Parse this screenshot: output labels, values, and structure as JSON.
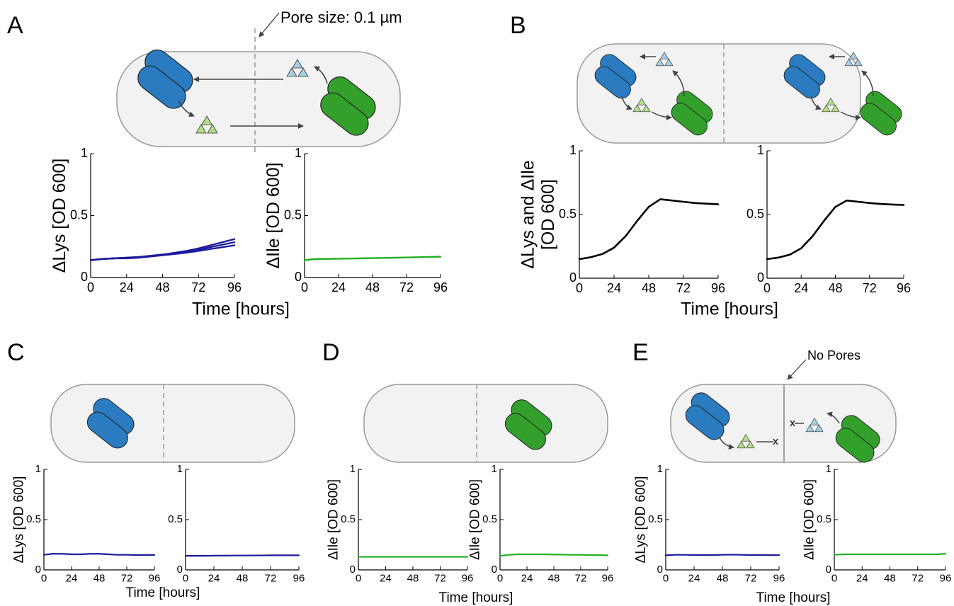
{
  "figure": {
    "panel_labels": [
      "A",
      "B",
      "C",
      "D",
      "E"
    ],
    "annotations": [
      "Pore size: 0.1 µm",
      "No Pores"
    ]
  },
  "chart_data": [
    {
      "type": "line",
      "ylabel": "ΔLys [OD 600]",
      "xlabel": "Time [hours]",
      "xlim": [
        0,
        96
      ],
      "ylim": [
        0,
        1
      ],
      "xticks": [
        0,
        24,
        48,
        72,
        96
      ],
      "yticks": [
        0,
        0.5,
        1
      ],
      "x": [
        0,
        8,
        16,
        24,
        32,
        40,
        48,
        56,
        64,
        72,
        80,
        88,
        96
      ],
      "series": [
        {
          "color": "#1c1c9c",
          "values": [
            0.14,
            0.15,
            0.155,
            0.155,
            0.16,
            0.17,
            0.18,
            0.19,
            0.2,
            0.215,
            0.23,
            0.245,
            0.26
          ]
        },
        {
          "color": "#1c1c9c",
          "values": [
            0.14,
            0.15,
            0.155,
            0.16,
            0.165,
            0.175,
            0.185,
            0.195,
            0.21,
            0.225,
            0.245,
            0.265,
            0.285
          ]
        },
        {
          "color": "#1c1c9c",
          "values": [
            0.14,
            0.15,
            0.155,
            0.16,
            0.165,
            0.175,
            0.185,
            0.2,
            0.215,
            0.235,
            0.26,
            0.285,
            0.31
          ]
        }
      ]
    },
    {
      "type": "line",
      "ylabel": "ΔIle [OD 600]",
      "xlim": [
        0,
        96
      ],
      "ylim": [
        0,
        1
      ],
      "xticks": [
        0,
        24,
        48,
        72,
        96
      ],
      "yticks": [
        0,
        0.5,
        1
      ],
      "x": [
        0,
        8,
        16,
        24,
        32,
        40,
        48,
        56,
        64,
        72,
        80,
        88,
        96
      ],
      "series": [
        {
          "color": "#22b022",
          "values": [
            0.14,
            0.15,
            0.15,
            0.152,
            0.153,
            0.155,
            0.157,
            0.158,
            0.16,
            0.162,
            0.164,
            0.166,
            0.168
          ]
        }
      ]
    },
    {
      "type": "line",
      "ylabel": [
        "ΔLys and ΔIle",
        "[OD 600]"
      ],
      "xlabel": "Time [hours]",
      "xlim": [
        0,
        96
      ],
      "ylim": [
        0,
        1
      ],
      "xticks": [
        0,
        24,
        48,
        72,
        96
      ],
      "yticks": [
        0,
        0.5,
        1
      ],
      "x": [
        0,
        8,
        16,
        24,
        32,
        40,
        48,
        56,
        64,
        72,
        80,
        88,
        96
      ],
      "series": [
        {
          "color": "#000000",
          "values": [
            0.15,
            0.165,
            0.19,
            0.24,
            0.33,
            0.45,
            0.56,
            0.62,
            0.61,
            0.6,
            0.59,
            0.585,
            0.58
          ]
        }
      ]
    },
    {
      "type": "line",
      "xlim": [
        0,
        96
      ],
      "ylim": [
        0,
        1
      ],
      "xticks": [
        0,
        24,
        48,
        72,
        96
      ],
      "yticks": [
        0,
        0.5,
        1
      ],
      "x": [
        0,
        8,
        16,
        24,
        32,
        40,
        48,
        56,
        64,
        72,
        80,
        88,
        96
      ],
      "series": [
        {
          "color": "#000000",
          "values": [
            0.15,
            0.162,
            0.185,
            0.235,
            0.33,
            0.45,
            0.56,
            0.61,
            0.6,
            0.59,
            0.583,
            0.578,
            0.575
          ]
        }
      ]
    },
    {
      "type": "line",
      "ylabel": "ΔLys [OD 600]",
      "xlabel": "Time [hours]",
      "xlim": [
        0,
        96
      ],
      "ylim": [
        0,
        1
      ],
      "xticks": [
        0,
        24,
        48,
        72,
        96
      ],
      "yticks": [
        0,
        0.5,
        1
      ],
      "x": [
        0,
        8,
        16,
        24,
        32,
        40,
        48,
        56,
        64,
        72,
        80,
        88,
        96
      ],
      "series": [
        {
          "color": "#1c1c9c",
          "values": [
            0.15,
            0.16,
            0.16,
            0.155,
            0.155,
            0.16,
            0.16,
            0.155,
            0.15,
            0.15,
            0.148,
            0.148,
            0.148
          ]
        }
      ]
    },
    {
      "type": "line",
      "xlim": [
        0,
        96
      ],
      "ylim": [
        0,
        1
      ],
      "xticks": [
        0,
        24,
        48,
        72,
        96
      ],
      "yticks": [
        0,
        0.5,
        1
      ],
      "x": [
        0,
        8,
        16,
        24,
        32,
        40,
        48,
        56,
        64,
        72,
        80,
        88,
        96
      ],
      "series": [
        {
          "color": "#1c1c9c",
          "values": [
            0.14,
            0.14,
            0.14,
            0.142,
            0.142,
            0.143,
            0.143,
            0.144,
            0.144,
            0.145,
            0.145,
            0.145,
            0.145
          ]
        }
      ]
    },
    {
      "type": "line",
      "ylabel": "ΔIle [OD 600]",
      "xlabel": "Time [hours]",
      "xlim": [
        0,
        96
      ],
      "ylim": [
        0,
        1
      ],
      "xticks": [
        0,
        24,
        48,
        72,
        96
      ],
      "yticks": [
        0,
        0.5,
        1
      ],
      "x": [
        0,
        8,
        16,
        24,
        32,
        40,
        48,
        56,
        64,
        72,
        80,
        88,
        96
      ],
      "series": [
        {
          "color": "#22b022",
          "values": [
            0.13,
            0.13,
            0.13,
            0.13,
            0.13,
            0.13,
            0.13,
            0.13,
            0.13,
            0.13,
            0.13,
            0.13,
            0.13
          ]
        }
      ]
    },
    {
      "type": "line",
      "ylabel": "ΔIle [OD 600]",
      "xlim": [
        0,
        96
      ],
      "ylim": [
        0,
        1
      ],
      "xticks": [
        0,
        24,
        48,
        72,
        96
      ],
      "yticks": [
        0,
        0.5,
        1
      ],
      "x": [
        0,
        8,
        16,
        24,
        32,
        40,
        48,
        56,
        64,
        72,
        80,
        88,
        96
      ],
      "series": [
        {
          "color": "#22b022",
          "values": [
            0.14,
            0.15,
            0.155,
            0.155,
            0.155,
            0.155,
            0.153,
            0.152,
            0.15,
            0.15,
            0.148,
            0.147,
            0.145
          ]
        }
      ]
    },
    {
      "type": "line",
      "ylabel": "ΔLys [OD 600]",
      "xlabel": "Time [hours]",
      "xlim": [
        0,
        96
      ],
      "ylim": [
        0,
        1
      ],
      "xticks": [
        0,
        24,
        48,
        72,
        96
      ],
      "yticks": [
        0,
        0.5,
        1
      ],
      "x": [
        0,
        8,
        16,
        24,
        32,
        40,
        48,
        56,
        64,
        72,
        80,
        88,
        96
      ],
      "series": [
        {
          "color": "#1c1c9c",
          "values": [
            0.145,
            0.15,
            0.15,
            0.148,
            0.148,
            0.148,
            0.15,
            0.152,
            0.15,
            0.148,
            0.148,
            0.147,
            0.147
          ]
        }
      ]
    },
    {
      "type": "line",
      "ylabel": "ΔIle [OD 600]",
      "xlim": [
        0,
        96
      ],
      "ylim": [
        0,
        1
      ],
      "xticks": [
        0,
        24,
        48,
        72,
        96
      ],
      "yticks": [
        0,
        0.5,
        1
      ],
      "x": [
        0,
        8,
        16,
        24,
        32,
        40,
        48,
        56,
        64,
        72,
        80,
        88,
        96
      ],
      "series": [
        {
          "color": "#22b022",
          "values": [
            0.15,
            0.155,
            0.155,
            0.155,
            0.155,
            0.155,
            0.155,
            0.155,
            0.155,
            0.155,
            0.155,
            0.155,
            0.16
          ]
        }
      ]
    }
  ]
}
